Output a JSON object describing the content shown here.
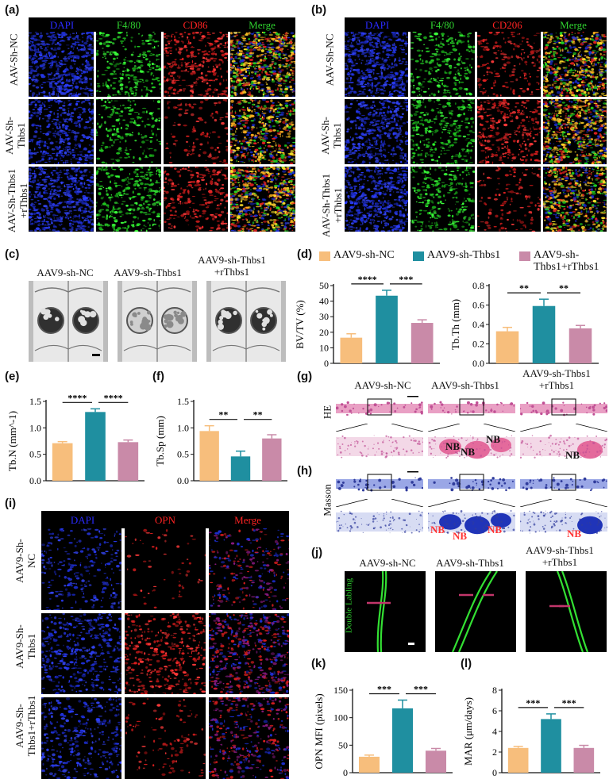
{
  "panels": {
    "a": {
      "label": "(a)",
      "headers": [
        "DAPI",
        "F4/80",
        "CD86",
        "Merge"
      ],
      "header_colors": [
        "#2a2aff",
        "#2fd12f",
        "#ff2222",
        "#2fd12f"
      ],
      "rows": [
        "AAV-Sh-NC",
        "AAV-Sh-\nThbs1",
        "AAV-Sh-Thbs1\n+rThbs1"
      ]
    },
    "b": {
      "label": "(b)",
      "headers": [
        "DAPI",
        "F4/80",
        "CD206",
        "Merge"
      ],
      "header_colors": [
        "#2a2aff",
        "#2fd12f",
        "#ff2222",
        "#2fd12f"
      ],
      "rows": [
        "AAV-Sh-NC",
        "AAV-Sh-\nThbs1",
        "AAV-Sh-Thbs1\n+rThbs1"
      ]
    },
    "c": {
      "label": "(c)",
      "titles": [
        "AAV9-sh-NC",
        "AAV9-sh-Thbs1",
        "AAV9-sh-Thbs1\n+rThbs1"
      ]
    },
    "d": {
      "label": "(d)"
    },
    "e": {
      "label": "(e)"
    },
    "f": {
      "label": "(f)"
    },
    "g": {
      "label": "(g)",
      "titles": [
        "AAV9-sh-NC",
        "AAV9-sh-Thbs1",
        "AAV9-sh-Thbs1\n+rThbs1"
      ],
      "row_label": "HE",
      "nb": "NB"
    },
    "h": {
      "label": "(h)",
      "row_label": "Masson",
      "nb": "NB"
    },
    "i": {
      "label": "(i)",
      "headers": [
        "DAPI",
        "OPN",
        "Merge"
      ],
      "header_colors": [
        "#2a2aff",
        "#ff2222",
        "#ff2222"
      ],
      "rows": [
        "AAV9-Sh-\nNC",
        "AAV9-Sh-\nThbs1",
        "AAV9-Sh-\nThbs1+rThbs1"
      ]
    },
    "j": {
      "label": "(j)",
      "titles": [
        "AAV9-sh-NC",
        "AAV9-sh-Thbs1",
        "AAV9-sh-Thbs1\n+rThbs1"
      ],
      "side_label": "Double Labling"
    },
    "k": {
      "label": "(k)"
    },
    "l": {
      "label": "(l)"
    }
  },
  "legend": {
    "entries": [
      "AAV9-sh-NC",
      "AAV9-sh-Thbs1",
      "AAV9-sh-\nThbs1+rThbs1"
    ],
    "colors": [
      "#f7be7c",
      "#1f8fa0",
      "#c98aa8"
    ]
  },
  "chart_data": [
    {
      "id": "d1",
      "type": "bar",
      "categories": [
        "AAV9-sh-NC",
        "AAV9-sh-Thbs1",
        "AAV9-sh-Thbs1+rThbs1"
      ],
      "values": [
        16.5,
        43.5,
        26
      ],
      "errors": [
        2.5,
        3.5,
        2
      ],
      "ylabel": "BV/TV (%)",
      "ylim": [
        0,
        50
      ],
      "yticks": [
        0,
        10,
        20,
        30,
        40,
        50
      ],
      "sig": [
        {
          "from": 0,
          "to": 1,
          "label": "****"
        },
        {
          "from": 1,
          "to": 2,
          "label": "***"
        }
      ]
    },
    {
      "id": "d2",
      "type": "bar",
      "categories": [
        "AAV9-sh-NC",
        "AAV9-sh-Thbs1",
        "AAV9-sh-Thbs1+rThbs1"
      ],
      "values": [
        0.33,
        0.59,
        0.36
      ],
      "errors": [
        0.04,
        0.07,
        0.03
      ],
      "ylabel": "Tb.Th (mm)",
      "ylim": [
        0,
        0.8
      ],
      "yticks": [
        0.0,
        0.2,
        0.4,
        0.6,
        0.8
      ],
      "sig": [
        {
          "from": 0,
          "to": 1,
          "label": "**"
        },
        {
          "from": 1,
          "to": 2,
          "label": "**"
        }
      ]
    },
    {
      "id": "e",
      "type": "bar",
      "categories": [
        "AAV9-sh-NC",
        "AAV9-sh-Thbs1",
        "AAV9-sh-Thbs1+rThbs1"
      ],
      "values": [
        0.71,
        1.3,
        0.73
      ],
      "errors": [
        0.03,
        0.06,
        0.04
      ],
      "ylabel": "Tb.N (mm^-1)",
      "ylim": [
        0,
        1.5
      ],
      "yticks": [
        0.0,
        0.5,
        1.0,
        1.5
      ],
      "sig": [
        {
          "from": 0,
          "to": 1,
          "label": "****"
        },
        {
          "from": 1,
          "to": 2,
          "label": "****"
        }
      ]
    },
    {
      "id": "f",
      "type": "bar",
      "categories": [
        "AAV9-sh-NC",
        "AAV9-sh-Thbs1",
        "AAV9-sh-Thbs1+rThbs1"
      ],
      "values": [
        0.94,
        0.46,
        0.8
      ],
      "errors": [
        0.1,
        0.1,
        0.07
      ],
      "ylabel": "Tb.Sp (mm)",
      "ylim": [
        0,
        1.5
      ],
      "yticks": [
        0.0,
        0.5,
        1.0,
        1.5
      ],
      "sig": [
        {
          "from": 0,
          "to": 1,
          "label": "**"
        },
        {
          "from": 1,
          "to": 2,
          "label": "**"
        }
      ]
    },
    {
      "id": "k",
      "type": "bar",
      "categories": [
        "AAV9-sh-NC",
        "AAV9-sh-Thbs1",
        "AAV9-sh-Thbs1+rThbs1"
      ],
      "values": [
        29,
        117,
        40
      ],
      "errors": [
        3,
        15,
        4
      ],
      "ylabel": "OPN MFI (pixels)",
      "ylim": [
        0,
        150
      ],
      "yticks": [
        0,
        50,
        100,
        150
      ],
      "sig": [
        {
          "from": 0,
          "to": 1,
          "label": "***"
        },
        {
          "from": 1,
          "to": 2,
          "label": "***"
        }
      ]
    },
    {
      "id": "l",
      "type": "bar",
      "categories": [
        "AAV9-sh-NC",
        "AAV9-sh-Thbs1",
        "AAV9-sh-Thbs1+rThbs1"
      ],
      "values": [
        2.4,
        5.2,
        2.4
      ],
      "errors": [
        0.15,
        0.5,
        0.25
      ],
      "ylabel": "MAR (μm/days)",
      "ylim": [
        0,
        8
      ],
      "yticks": [
        0,
        2,
        4,
        6,
        8
      ],
      "sig": [
        {
          "from": 0,
          "to": 1,
          "label": "***"
        },
        {
          "from": 1,
          "to": 2,
          "label": "***"
        }
      ]
    }
  ]
}
